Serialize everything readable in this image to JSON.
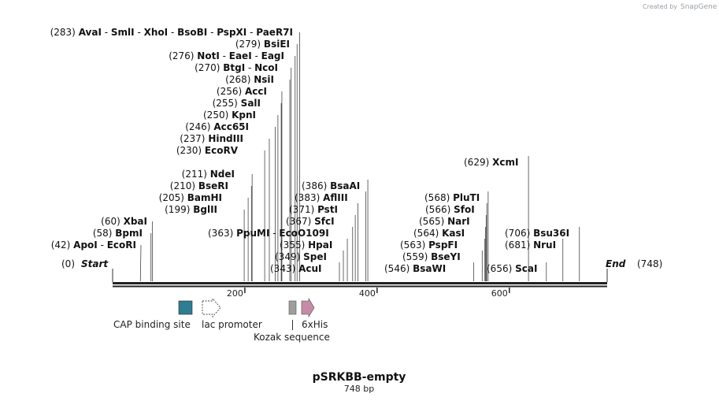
{
  "credit": {
    "created_by": "Created by",
    "brand": "SnapGene"
  },
  "plasmid": {
    "name": "pSRKBB-empty",
    "length_text": "748 bp",
    "length": 748
  },
  "ends": {
    "start_label": "Start",
    "start_pos": "(0)",
    "end_label": "End",
    "end_pos": "(748)"
  },
  "ticks": [
    {
      "label": "200",
      "bp": 200
    },
    {
      "label": "400",
      "bp": 400
    },
    {
      "label": "600",
      "bp": 600
    }
  ],
  "sites_left": [
    {
      "row": 0,
      "parts": [
        [
          "(283)",
          "pos"
        ],
        [
          "AvaI",
          "nm"
        ],
        [
          " - ",
          "pos"
        ],
        [
          "SmlI",
          "nm"
        ],
        [
          " - ",
          "pos"
        ],
        [
          "XhoI",
          "nm"
        ],
        [
          " - ",
          "pos"
        ],
        [
          "BsoBI",
          "nm"
        ],
        [
          " - ",
          "pos"
        ],
        [
          "PspXI",
          "nm"
        ],
        [
          " - ",
          "pos"
        ],
        [
          "PaeR7I",
          "nm"
        ]
      ],
      "bp": 283
    },
    {
      "row": 1,
      "parts": [
        [
          "(279)",
          "pos"
        ],
        [
          "BsiEI",
          "nm"
        ]
      ],
      "bp": 279
    },
    {
      "row": 2,
      "parts": [
        [
          "(276)",
          "pos"
        ],
        [
          "NotI",
          "nm"
        ],
        [
          " - ",
          "pos"
        ],
        [
          "EaeI",
          "nm"
        ],
        [
          " - ",
          "pos"
        ],
        [
          "EagI",
          "nm"
        ]
      ],
      "bp": 276
    },
    {
      "row": 3,
      "parts": [
        [
          "(270)",
          "pos"
        ],
        [
          "BtgI",
          "nm"
        ],
        [
          " - ",
          "pos"
        ],
        [
          "NcoI",
          "nm"
        ]
      ],
      "bp": 270
    },
    {
      "row": 4,
      "parts": [
        [
          "(268)",
          "pos"
        ],
        [
          "NsiI",
          "nm"
        ]
      ],
      "bp": 268
    },
    {
      "row": 5,
      "parts": [
        [
          "(256)",
          "pos"
        ],
        [
          "AccI",
          "nm"
        ]
      ],
      "bp": 256
    },
    {
      "row": 6,
      "parts": [
        [
          "(255)",
          "pos"
        ],
        [
          "SalI",
          "nm"
        ]
      ],
      "bp": 255
    },
    {
      "row": 7,
      "parts": [
        [
          "(250)",
          "pos"
        ],
        [
          "KpnI",
          "nm"
        ]
      ],
      "bp": 250
    },
    {
      "row": 8,
      "parts": [
        [
          "(246)",
          "pos"
        ],
        [
          "Acc65I",
          "nm"
        ]
      ],
      "bp": 246
    },
    {
      "row": 9,
      "parts": [
        [
          "(237)",
          "pos"
        ],
        [
          "HindIII",
          "nm"
        ]
      ],
      "bp": 237
    },
    {
      "row": 10,
      "parts": [
        [
          "(230)",
          "pos"
        ],
        [
          "EcoRV",
          "nm"
        ]
      ],
      "bp": 230
    },
    {
      "row": 12,
      "parts": [
        [
          "(211)",
          "pos"
        ],
        [
          "NdeI",
          "nm"
        ]
      ],
      "bp": 211
    },
    {
      "row": 13,
      "parts": [
        [
          "(210)",
          "pos"
        ],
        [
          "BseRI",
          "nm"
        ]
      ],
      "bp": 210
    },
    {
      "row": 14,
      "parts": [
        [
          "(205)",
          "pos"
        ],
        [
          "BamHI",
          "nm"
        ]
      ],
      "bp": 205
    },
    {
      "row": 15,
      "parts": [
        [
          "(199)",
          "pos"
        ],
        [
          "BglII",
          "nm"
        ]
      ],
      "bp": 199
    },
    {
      "row": 16,
      "parts": [
        [
          "(60)",
          "pos"
        ],
        [
          "XbaI",
          "nm"
        ]
      ],
      "bp": 60
    },
    {
      "row": 17,
      "parts": [
        [
          "(58)",
          "pos"
        ],
        [
          "BpmI",
          "nm"
        ]
      ],
      "bp": 58
    },
    {
      "row": 18,
      "parts": [
        [
          "(42)",
          "pos"
        ],
        [
          "ApoI",
          "nm"
        ],
        [
          " - ",
          "pos"
        ],
        [
          "EcoRI",
          "nm"
        ]
      ],
      "bp": 42
    }
  ],
  "sites_right": [
    {
      "row": 11,
      "parts": [
        [
          "(629)",
          "pos"
        ],
        [
          "XcmI",
          "nm"
        ]
      ],
      "bp": 629
    },
    {
      "row": 13,
      "parts": [
        [
          "(386)",
          "pos"
        ],
        [
          "BsaAI",
          "nm"
        ]
      ],
      "bp": 386
    },
    {
      "row": 14,
      "parts": [
        [
          "(383)",
          "pos"
        ],
        [
          "AflIII",
          "nm"
        ]
      ],
      "bp": 383
    },
    {
      "row": 15,
      "parts": [
        [
          "(371)",
          "pos"
        ],
        [
          "PstI",
          "nm"
        ]
      ],
      "bp": 371
    },
    {
      "row": 16,
      "parts": [
        [
          "(367)",
          "pos"
        ],
        [
          "SfcI",
          "nm"
        ]
      ],
      "bp": 367
    },
    {
      "row": 17,
      "parts": [
        [
          "(363)",
          "pos"
        ],
        [
          "PpuMI",
          "nm"
        ],
        [
          " - ",
          "pos"
        ],
        [
          "EcoO109I",
          "nm"
        ]
      ],
      "bp": 363
    },
    {
      "row": 18,
      "parts": [
        [
          "(355)",
          "pos"
        ],
        [
          "HpaI",
          "nm"
        ]
      ],
      "bp": 355
    },
    {
      "row": 19,
      "parts": [
        [
          "(349)",
          "pos"
        ],
        [
          "SpeI",
          "nm"
        ]
      ],
      "bp": 349
    },
    {
      "row": 20,
      "parts": [
        [
          "(343)",
          "pos"
        ],
        [
          "AcuI",
          "nm"
        ]
      ],
      "bp": 343
    },
    {
      "row": 14,
      "parts": [
        [
          "(568)",
          "pos"
        ],
        [
          "PluTI",
          "nm"
        ]
      ],
      "bp": 568
    },
    {
      "row": 15,
      "parts": [
        [
          "(566)",
          "pos"
        ],
        [
          "SfoI",
          "nm"
        ]
      ],
      "bp": 566
    },
    {
      "row": 16,
      "parts": [
        [
          "(565)",
          "pos"
        ],
        [
          "NarI",
          "nm"
        ]
      ],
      "bp": 565
    },
    {
      "row": 17,
      "parts": [
        [
          "(564)",
          "pos"
        ],
        [
          "KasI",
          "nm"
        ]
      ],
      "bp": 564
    },
    {
      "row": 18,
      "parts": [
        [
          "(563)",
          "pos"
        ],
        [
          "PspFI",
          "nm"
        ]
      ],
      "bp": 563
    },
    {
      "row": 19,
      "parts": [
        [
          "(559)",
          "pos"
        ],
        [
          "BseYI",
          "nm"
        ]
      ],
      "bp": 559
    },
    {
      "row": 20,
      "parts": [
        [
          "(546)",
          "pos"
        ],
        [
          "BsaWI",
          "nm"
        ]
      ],
      "bp": 546
    },
    {
      "row": 17,
      "parts": [
        [
          "(706)",
          "pos"
        ],
        [
          "Bsu36I",
          "nm"
        ]
      ],
      "bp": 706
    },
    {
      "row": 18,
      "parts": [
        [
          "(681)",
          "pos"
        ],
        [
          "NruI",
          "nm"
        ]
      ],
      "bp": 681
    },
    {
      "row": 20,
      "parts": [
        [
          "(656)",
          "pos"
        ],
        [
          "ScaI",
          "nm"
        ]
      ],
      "bp": 656
    }
  ],
  "features": [
    {
      "label": "CAP binding site",
      "type": "box",
      "color": "#2e7d92"
    },
    {
      "label": "lac promoter",
      "type": "arrow-dashed",
      "color": "#ffffff"
    },
    {
      "label": "Kozak sequence",
      "type": "box",
      "color": "#9e9e9e"
    },
    {
      "label": "6xHis",
      "type": "arrow",
      "color": "#c78ba8"
    }
  ]
}
